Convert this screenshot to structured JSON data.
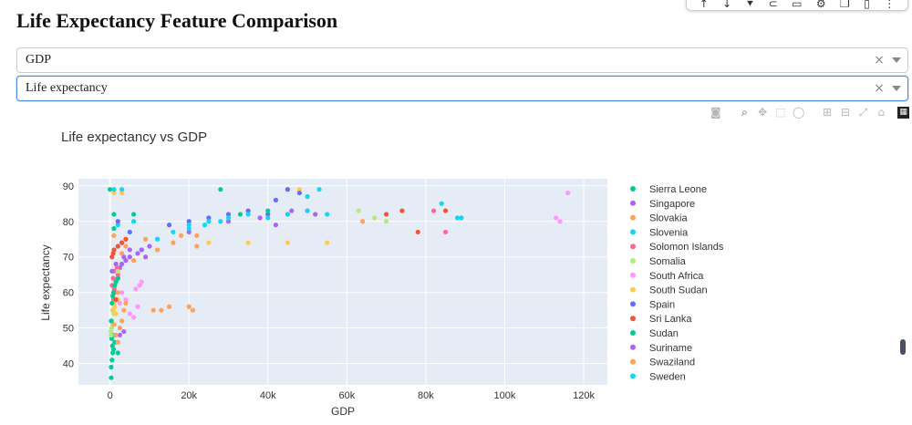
{
  "page": {
    "title": "Life Expectancy Feature Comparison"
  },
  "top_toolbar": {
    "icons": [
      "arrow-up-icon",
      "arrow-down-icon",
      "pin-icon",
      "link-icon",
      "comment-icon",
      "gear-icon",
      "copy-icon",
      "delete-icon",
      "more-icon"
    ]
  },
  "dropdowns": [
    {
      "value": "GDP",
      "clear": "×"
    },
    {
      "value": "Life expectancy",
      "clear": "×"
    }
  ],
  "modebar": {
    "icons": [
      "camera-icon",
      "zoom-icon",
      "pan-icon",
      "box-select-icon",
      "lasso-select-icon",
      "zoom-in-icon",
      "zoom-out-icon",
      "autoscale-icon",
      "reset-axes-icon",
      "plotly-logo-icon"
    ]
  },
  "chart_data": {
    "type": "scatter",
    "title": "Life expectancy  vs GDP",
    "xlabel": "GDP",
    "ylabel": "Life expectancy",
    "xlim": [
      -8000,
      126000
    ],
    "ylim": [
      34,
      92
    ],
    "xticks": [
      0,
      20000,
      40000,
      60000,
      80000,
      100000,
      120000
    ],
    "xtick_labels": [
      "0",
      "20k",
      "40k",
      "60k",
      "80k",
      "100k",
      "120k"
    ],
    "yticks": [
      40,
      50,
      60,
      70,
      80,
      90
    ],
    "ytick_labels": [
      "40",
      "50",
      "60",
      "70",
      "80",
      "90"
    ],
    "grid": true,
    "background": "#e5ecf6",
    "legend_position": "right",
    "series": [
      {
        "name": "Sierra Leone",
        "color": "#00cc96",
        "points": [
          [
            300,
            39
          ],
          [
            500,
            41
          ],
          [
            700,
            43
          ],
          [
            600,
            45
          ],
          [
            400,
            47
          ],
          [
            900,
            44
          ],
          [
            2000,
            43
          ],
          [
            300,
            36
          ],
          [
            1200,
            46
          ],
          [
            800,
            48
          ],
          [
            0,
            89
          ],
          [
            1000,
            82
          ]
        ]
      },
      {
        "name": "Singapore",
        "color": "#ab63fa",
        "points": [
          [
            1500,
            68
          ],
          [
            2500,
            67
          ],
          [
            3500,
            70
          ],
          [
            5000,
            72
          ],
          [
            20000,
            77
          ],
          [
            30000,
            80
          ],
          [
            38000,
            81
          ],
          [
            45000,
            82
          ],
          [
            50000,
            83
          ],
          [
            52000,
            82
          ],
          [
            2000,
            64
          ],
          [
            3000,
            74
          ]
        ]
      },
      {
        "name": "Slovakia",
        "color": "#ffa15a",
        "points": [
          [
            6000,
            69
          ],
          [
            12000,
            72
          ],
          [
            16000,
            74
          ],
          [
            18000,
            76
          ],
          [
            20000,
            56
          ],
          [
            21000,
            55
          ],
          [
            15000,
            56
          ],
          [
            13000,
            55
          ],
          [
            22000,
            76
          ],
          [
            3000,
            71
          ],
          [
            1000,
            76
          ],
          [
            4000,
            73
          ]
        ]
      },
      {
        "name": "Slovenia",
        "color": "#19d3f3",
        "points": [
          [
            12000,
            75
          ],
          [
            16000,
            77
          ],
          [
            20000,
            78
          ],
          [
            24000,
            79
          ],
          [
            28000,
            80
          ],
          [
            30000,
            81
          ],
          [
            45000,
            89
          ],
          [
            50000,
            87
          ],
          [
            53000,
            89
          ],
          [
            89000,
            81
          ],
          [
            2000,
            79
          ],
          [
            6000,
            80
          ]
        ]
      },
      {
        "name": "Solomon Islands",
        "color": "#ff6692",
        "points": [
          [
            500,
            62
          ],
          [
            800,
            64
          ],
          [
            1000,
            66
          ],
          [
            1500,
            63
          ],
          [
            2000,
            65
          ],
          [
            1200,
            60
          ],
          [
            700,
            59
          ],
          [
            900,
            58
          ],
          [
            1100,
            61
          ],
          [
            1800,
            67
          ],
          [
            82000,
            83
          ],
          [
            85000,
            77
          ]
        ]
      },
      {
        "name": "Somalia",
        "color": "#b6e880",
        "points": [
          [
            300,
            48
          ],
          [
            400,
            50
          ],
          [
            500,
            52
          ],
          [
            600,
            55
          ],
          [
            800,
            57
          ],
          [
            1000,
            54
          ],
          [
            200,
            49
          ],
          [
            700,
            51
          ],
          [
            63000,
            83
          ],
          [
            67000,
            81
          ],
          [
            70000,
            80
          ],
          [
            2000,
            66
          ]
        ]
      },
      {
        "name": "South Africa",
        "color": "#ff97ff",
        "points": [
          [
            3000,
            60
          ],
          [
            5000,
            54
          ],
          [
            6000,
            53
          ],
          [
            7000,
            56
          ],
          [
            4000,
            58
          ],
          [
            7500,
            62
          ],
          [
            8000,
            63
          ],
          [
            6500,
            61
          ],
          [
            113000,
            81
          ],
          [
            114000,
            80
          ],
          [
            116000,
            88
          ],
          [
            2500,
            57
          ]
        ]
      },
      {
        "name": "South Sudan",
        "color": "#fecb52",
        "points": [
          [
            800,
            55
          ],
          [
            1000,
            57
          ],
          [
            1200,
            56
          ],
          [
            1500,
            54
          ],
          [
            2000,
            58
          ],
          [
            25000,
            74
          ],
          [
            35000,
            74
          ],
          [
            45000,
            74
          ],
          [
            55000,
            74
          ],
          [
            48000,
            89
          ],
          [
            3000,
            88
          ],
          [
            1000,
            88
          ]
        ]
      },
      {
        "name": "Spain",
        "color": "#636efa",
        "points": [
          [
            15000,
            79
          ],
          [
            20000,
            80
          ],
          [
            25000,
            81
          ],
          [
            30000,
            82
          ],
          [
            35000,
            83
          ],
          [
            40000,
            82
          ],
          [
            45000,
            89
          ],
          [
            48000,
            88
          ],
          [
            2000,
            80
          ],
          [
            5000,
            77
          ],
          [
            8000,
            72
          ],
          [
            42000,
            86
          ]
        ]
      },
      {
        "name": "Sri Lanka",
        "color": "#ef553b",
        "points": [
          [
            500,
            70
          ],
          [
            800,
            71
          ],
          [
            1000,
            72
          ],
          [
            2000,
            73
          ],
          [
            3000,
            74
          ],
          [
            4000,
            75
          ],
          [
            1000,
            60
          ],
          [
            1500,
            58
          ],
          [
            70000,
            82
          ],
          [
            74000,
            83
          ],
          [
            78000,
            77
          ],
          [
            85000,
            83
          ]
        ]
      },
      {
        "name": "Sudan",
        "color": "#00cc96",
        "points": [
          [
            500,
            57
          ],
          [
            700,
            59
          ],
          [
            900,
            60
          ],
          [
            1200,
            62
          ],
          [
            1500,
            63
          ],
          [
            2000,
            64
          ],
          [
            33000,
            82
          ],
          [
            40000,
            83
          ],
          [
            28000,
            89
          ],
          [
            1000,
            78
          ],
          [
            6000,
            82
          ],
          [
            300,
            52
          ]
        ]
      },
      {
        "name": "Suriname",
        "color": "#ab63fa",
        "points": [
          [
            3000,
            68
          ],
          [
            5000,
            70
          ],
          [
            7000,
            71
          ],
          [
            9000,
            70
          ],
          [
            8000,
            72
          ],
          [
            10000,
            73
          ],
          [
            4000,
            69
          ],
          [
            3500,
            49
          ],
          [
            2500,
            48
          ],
          [
            42000,
            79
          ],
          [
            46000,
            83
          ],
          [
            500,
            66
          ]
        ]
      },
      {
        "name": "Swaziland",
        "color": "#ffa15a",
        "points": [
          [
            1500,
            48
          ],
          [
            2000,
            46
          ],
          [
            2500,
            50
          ],
          [
            3000,
            52
          ],
          [
            3500,
            55
          ],
          [
            4000,
            57
          ],
          [
            1000,
            51
          ],
          [
            2000,
            60
          ],
          [
            9000,
            75
          ],
          [
            22000,
            73
          ],
          [
            11000,
            55
          ],
          [
            64000,
            80
          ]
        ]
      },
      {
        "name": "Sweden",
        "color": "#19d3f3",
        "points": [
          [
            20000,
            79
          ],
          [
            25000,
            80
          ],
          [
            30000,
            81
          ],
          [
            35000,
            82
          ],
          [
            40000,
            81
          ],
          [
            45000,
            82
          ],
          [
            50000,
            83
          ],
          [
            55000,
            82
          ],
          [
            84000,
            85
          ],
          [
            88000,
            81
          ],
          [
            1000,
            89
          ],
          [
            3000,
            89
          ]
        ]
      }
    ]
  }
}
